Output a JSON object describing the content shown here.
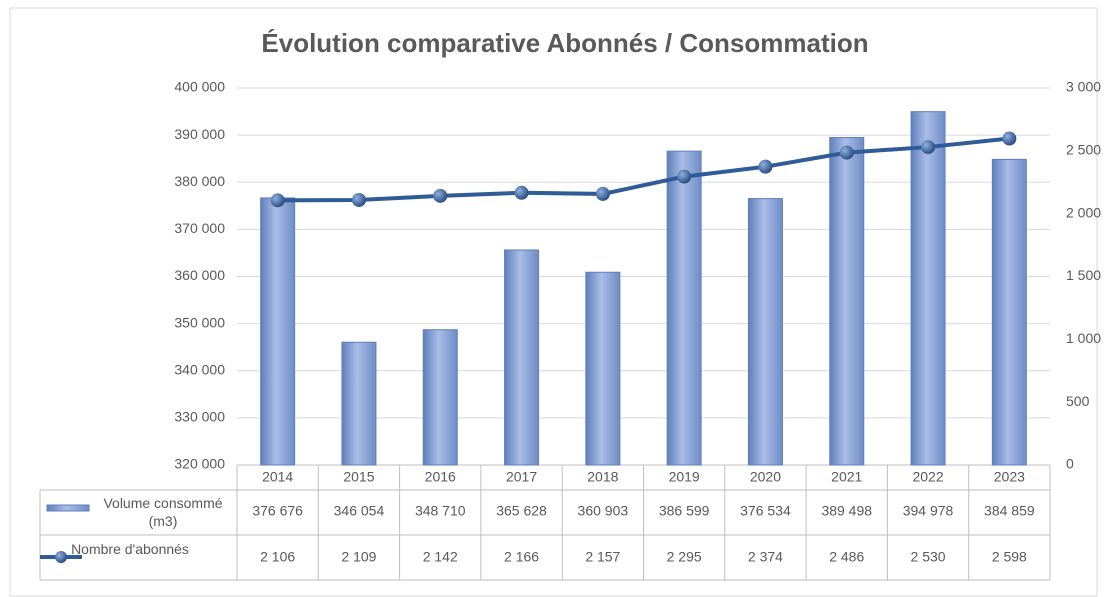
{
  "chart_data": {
    "type": "bar_line_table",
    "title": "Évolution comparative Abonnés / Consommation",
    "categories": [
      "2014",
      "2015",
      "2016",
      "2017",
      "2018",
      "2019",
      "2020",
      "2021",
      "2022",
      "2023"
    ],
    "series": [
      {
        "name": "Volume consommé (m3)",
        "color": "#7f9bd0",
        "type": "bar",
        "values": [
          376676,
          346054,
          348710,
          365628,
          360903,
          386599,
          376534,
          389498,
          394978,
          384859
        ],
        "value_labels": [
          "376 676",
          "346 054",
          "348 710",
          "365 628",
          "360 903",
          "386 599",
          "376 534",
          "389 498",
          "394 978",
          "384 859"
        ]
      },
      {
        "name": "Nombre d'abonnés",
        "color": "#2f5c97",
        "type": "line",
        "axis": "y2",
        "values": [
          2106,
          2109,
          2142,
          2166,
          2157,
          2295,
          2374,
          2486,
          2530,
          2598
        ],
        "value_labels": [
          "2 106",
          "2 109",
          "2 142",
          "2 166",
          "2 157",
          "2 295",
          "2 374",
          "2 486",
          "2 530",
          "2 598"
        ]
      }
    ],
    "ylim": [
      320000,
      400000
    ],
    "yticks": [
      {
        "value": 320000,
        "label": "320 000"
      },
      {
        "value": 330000,
        "label": "330 000"
      },
      {
        "value": 340000,
        "label": "340 000"
      },
      {
        "value": 350000,
        "label": "350 000"
      },
      {
        "value": 360000,
        "label": "360 000"
      },
      {
        "value": 370000,
        "label": "370 000"
      },
      {
        "value": 380000,
        "label": "380 000"
      },
      {
        "value": 390000,
        "label": "390 000"
      },
      {
        "value": 400000,
        "label": "400 000"
      }
    ],
    "y2lim": [
      0,
      3000
    ],
    "y2ticks": [
      0,
      500,
      {
        "value": 1000,
        "label": "1 000"
      },
      {
        "value": 1500,
        "label": "1 500"
      },
      {
        "value": 2000,
        "label": "2 000"
      },
      {
        "value": 2500,
        "label": "2 500"
      },
      {
        "value": 3000,
        "label": "3 000"
      }
    ],
    "grid": true
  }
}
